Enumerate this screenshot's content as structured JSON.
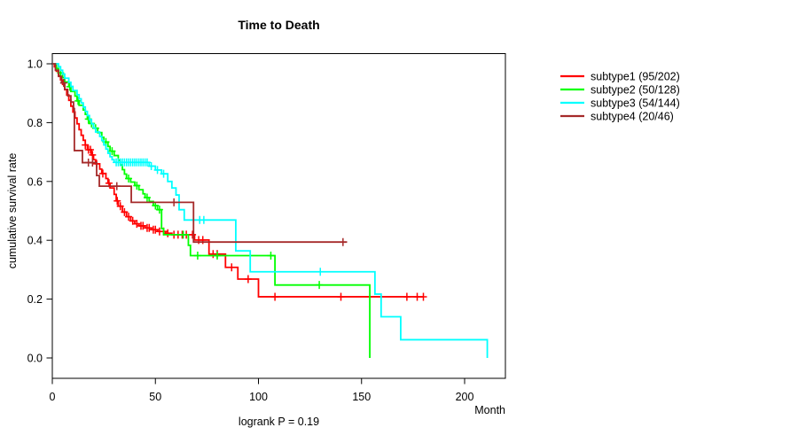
{
  "chart_data": {
    "type": "line",
    "subtype": "kaplan-meier-step",
    "title": "Time to Death",
    "xlabel": "Month",
    "ylabel": "cumulative survival rate",
    "footnote": "logrank P = 0.19",
    "xlim": [
      0,
      220
    ],
    "ylim": [
      0.0,
      1.0
    ],
    "grid": false,
    "legend_position": "right-outside",
    "x_ticks": [
      {
        "value": 0,
        "label": "0"
      },
      {
        "value": 50,
        "label": "50"
      },
      {
        "value": 100,
        "label": "100"
      },
      {
        "value": 150,
        "label": "150"
      },
      {
        "value": 200,
        "label": "200"
      }
    ],
    "y_ticks": [
      {
        "value": 0.0,
        "label": "0.0"
      },
      {
        "value": 0.2,
        "label": "0.2"
      },
      {
        "value": 0.4,
        "label": "0.4"
      },
      {
        "value": 0.6,
        "label": "0.6"
      },
      {
        "value": 0.8,
        "label": "0.8"
      },
      {
        "value": 1.0,
        "label": "1.0"
      }
    ],
    "series": [
      {
        "name": "subtype1",
        "label": "subtype1 (95/202)",
        "color": "#ff0000",
        "end": 180,
        "points": [
          [
            0,
            1.0
          ],
          [
            1,
            0.99
          ],
          [
            2,
            0.975
          ],
          [
            3,
            0.96
          ],
          [
            4,
            0.945
          ],
          [
            5,
            0.93
          ],
          [
            6,
            0.912
          ],
          [
            7,
            0.894
          ],
          [
            8,
            0.876
          ],
          [
            9,
            0.856
          ],
          [
            10,
            0.836
          ],
          [
            11,
            0.816
          ],
          [
            12,
            0.796
          ],
          [
            13,
            0.776
          ],
          [
            14,
            0.757
          ],
          [
            15,
            0.74
          ],
          [
            16,
            0.724
          ],
          [
            17,
            0.708
          ],
          [
            19,
            0.69
          ],
          [
            20,
            0.674
          ],
          [
            21,
            0.66
          ],
          [
            23,
            0.642
          ],
          [
            24,
            0.627
          ],
          [
            26,
            0.61
          ],
          [
            27,
            0.594
          ],
          [
            28,
            0.578
          ],
          [
            30,
            0.556
          ],
          [
            31,
            0.534
          ],
          [
            32,
            0.516
          ],
          [
            34,
            0.496
          ],
          [
            36,
            0.48
          ],
          [
            38,
            0.466
          ],
          [
            40,
            0.456
          ],
          [
            42,
            0.449
          ],
          [
            45,
            0.442
          ],
          [
            48,
            0.436
          ],
          [
            51,
            0.43
          ],
          [
            55,
            0.424
          ],
          [
            58,
            0.419
          ],
          [
            69,
            0.401
          ],
          [
            76,
            0.353
          ],
          [
            84,
            0.308
          ],
          [
            90,
            0.268
          ],
          [
            100,
            0.208
          ]
        ],
        "censors": [
          16,
          17.5,
          18.5,
          19.5,
          21.5,
          24.5,
          27.5,
          31.5,
          33,
          35,
          37,
          39,
          41,
          43,
          44,
          46,
          47,
          49,
          50,
          52,
          54,
          56,
          59,
          61,
          63,
          65,
          68,
          71,
          73,
          78,
          80,
          87,
          95,
          108,
          140,
          172,
          177,
          180
        ]
      },
      {
        "name": "subtype2",
        "label": "subtype2 (50/128)",
        "color": "#00ff00",
        "end": 154,
        "points": [
          [
            0,
            1.0
          ],
          [
            2,
            0.984
          ],
          [
            3,
            0.969
          ],
          [
            5,
            0.953
          ],
          [
            6,
            0.938
          ],
          [
            8,
            0.922
          ],
          [
            9,
            0.906
          ],
          [
            11,
            0.89
          ],
          [
            12,
            0.874
          ],
          [
            13,
            0.859
          ],
          [
            15,
            0.843
          ],
          [
            16,
            0.828
          ],
          [
            17,
            0.812
          ],
          [
            18,
            0.797
          ],
          [
            20,
            0.781
          ],
          [
            22,
            0.766
          ],
          [
            24,
            0.75
          ],
          [
            25,
            0.734
          ],
          [
            27,
            0.719
          ],
          [
            28,
            0.703
          ],
          [
            30,
            0.688
          ],
          [
            32,
            0.672
          ],
          [
            33,
            0.656
          ],
          [
            34,
            0.64
          ],
          [
            35,
            0.625
          ],
          [
            36,
            0.61
          ],
          [
            38,
            0.598
          ],
          [
            40,
            0.586
          ],
          [
            42,
            0.572
          ],
          [
            44,
            0.558
          ],
          [
            45,
            0.545
          ],
          [
            47,
            0.532
          ],
          [
            49,
            0.518
          ],
          [
            51,
            0.504
          ],
          [
            53,
            0.44
          ],
          [
            54,
            0.419
          ],
          [
            66,
            0.383
          ],
          [
            67,
            0.348
          ],
          [
            108,
            0.248
          ],
          [
            154,
            0.0
          ]
        ],
        "censors": [
          4,
          8.5,
          12.5,
          17.5,
          19,
          21,
          26,
          29,
          37,
          41,
          46,
          50,
          52,
          63.5,
          70.5,
          80,
          106,
          129.5
        ]
      },
      {
        "name": "subtype3",
        "label": "subtype3 (54/144)",
        "color": "#00ffff",
        "end": 211,
        "points": [
          [
            0,
            1.0
          ],
          [
            3,
            0.99
          ],
          [
            4,
            0.978
          ],
          [
            5,
            0.965
          ],
          [
            6,
            0.951
          ],
          [
            8,
            0.937
          ],
          [
            9,
            0.923
          ],
          [
            10,
            0.909
          ],
          [
            12,
            0.895
          ],
          [
            13,
            0.881
          ],
          [
            14,
            0.867
          ],
          [
            15,
            0.853
          ],
          [
            16,
            0.838
          ],
          [
            17,
            0.824
          ],
          [
            18,
            0.81
          ],
          [
            19,
            0.796
          ],
          [
            20,
            0.782
          ],
          [
            21,
            0.768
          ],
          [
            23,
            0.753
          ],
          [
            24,
            0.739
          ],
          [
            25,
            0.724
          ],
          [
            26,
            0.71
          ],
          [
            27,
            0.696
          ],
          [
            28,
            0.684
          ],
          [
            29,
            0.674
          ],
          [
            30,
            0.665
          ],
          [
            47,
            0.652
          ],
          [
            50,
            0.639
          ],
          [
            53,
            0.626
          ],
          [
            56,
            0.6
          ],
          [
            58,
            0.578
          ],
          [
            60,
            0.554
          ],
          [
            61.5,
            0.504
          ],
          [
            64,
            0.469
          ],
          [
            89,
            0.364
          ],
          [
            96,
            0.293
          ],
          [
            156.5,
            0.217
          ],
          [
            159.5,
            0.14
          ],
          [
            169,
            0.062
          ],
          [
            211,
            0.0
          ]
        ],
        "censors": [
          31,
          32,
          33,
          34,
          35,
          36,
          37,
          38,
          39,
          40,
          41,
          42,
          43,
          44,
          45,
          46,
          48,
          51,
          54,
          71.5,
          73.5,
          130
        ]
      },
      {
        "name": "subtype4",
        "label": "subtype4 (20/46)",
        "color": "#a52a2a",
        "end": 143,
        "points": [
          [
            0,
            1.0
          ],
          [
            1.5,
            0.978
          ],
          [
            3,
            0.957
          ],
          [
            4.5,
            0.935
          ],
          [
            6,
            0.913
          ],
          [
            7.5,
            0.891
          ],
          [
            9,
            0.87
          ],
          [
            10.3,
            0.848
          ],
          [
            10.7,
            0.705
          ],
          [
            14.6,
            0.664
          ],
          [
            21.5,
            0.62
          ],
          [
            22.8,
            0.584
          ],
          [
            38.3,
            0.529
          ],
          [
            68.5,
            0.394
          ]
        ],
        "censors": [
          5.5,
          17.5,
          19.5,
          31.3,
          59,
          141
        ]
      }
    ]
  }
}
